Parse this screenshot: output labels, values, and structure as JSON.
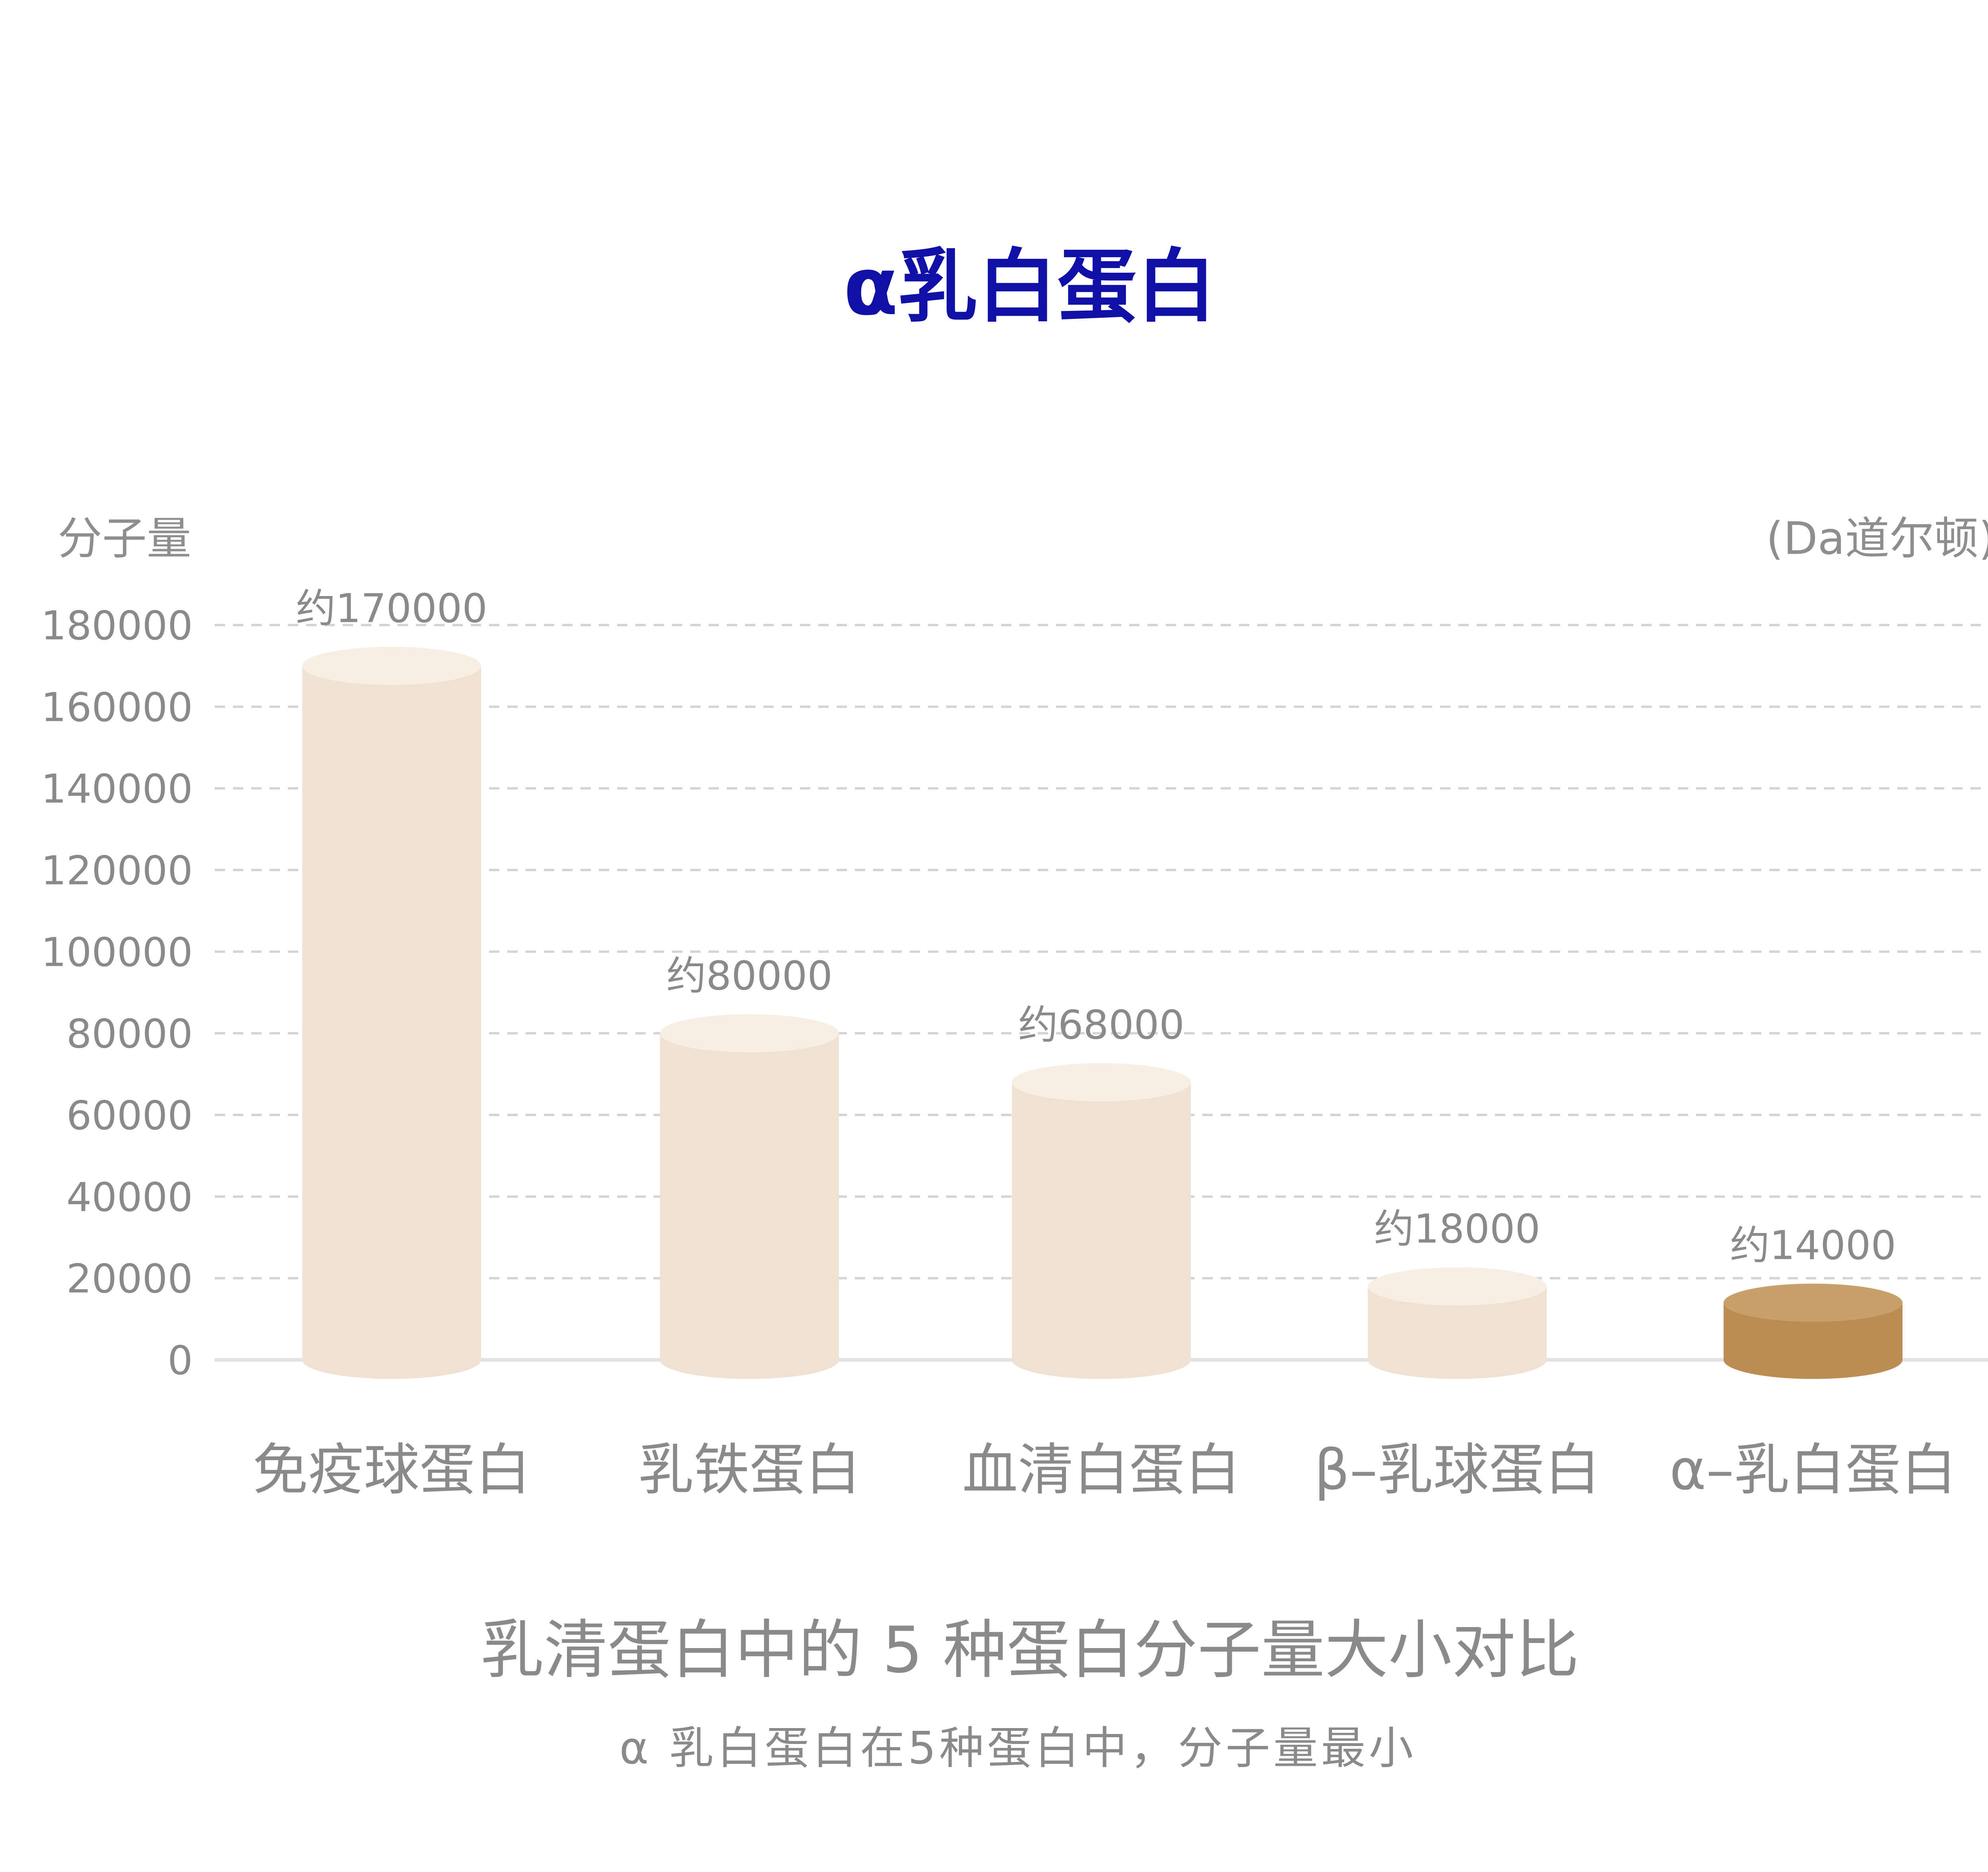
{
  "header": {
    "title": "α乳白蛋白"
  },
  "chart_data": {
    "type": "bar",
    "ylabel": "分子量",
    "unit_label": "(Da道尔顿)",
    "ylim": [
      0,
      180000
    ],
    "yticks": [
      0,
      20000,
      40000,
      60000,
      80000,
      100000,
      120000,
      140000,
      160000,
      180000
    ],
    "ytick_labels": [
      "0",
      "20000",
      "40000",
      "60000",
      "80000",
      "100000",
      "120000",
      "140000",
      "160000",
      "180000"
    ],
    "grid": true,
    "categories": [
      "免疫球蛋白",
      "乳铁蛋白",
      "血清白蛋白",
      "β–乳球蛋白",
      "α–乳白蛋白"
    ],
    "values": [
      170000,
      80000,
      68000,
      18000,
      14000
    ],
    "data_labels": [
      "约170000",
      "约80000",
      "约68000",
      "约18000",
      "约14000"
    ],
    "colors": {
      "bar_side": "#f0e2d2",
      "bar_top": "#f8eee3",
      "highlight_side": "#bb8d55",
      "highlight_top": "#c8a06a",
      "grid": "#d4d4d4",
      "baseline": "#e2e2e2"
    },
    "highlight_index": 4
  },
  "footer": {
    "subtitle": "乳清蛋白中的 5 种蛋白分子量大小对比",
    "caption": "α 乳白蛋白在5种蛋白中，分子量最小"
  }
}
